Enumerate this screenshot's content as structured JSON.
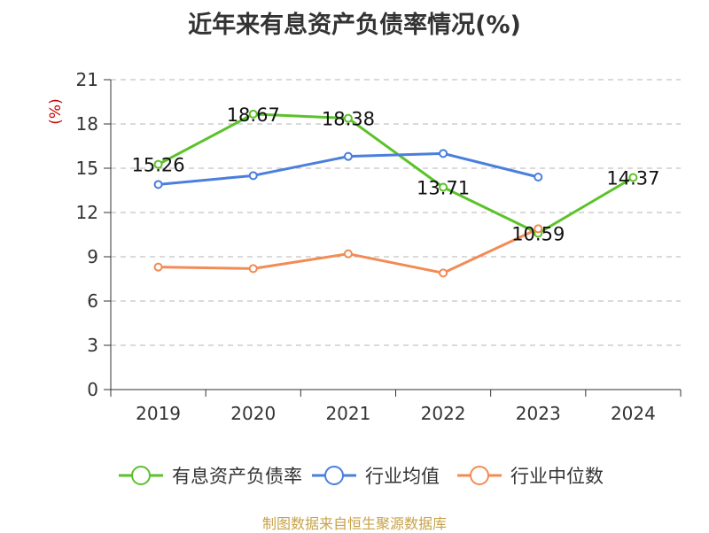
{
  "chart_data": {
    "type": "line",
    "title": "近年来有息资产负债率情况(%)",
    "ylabel": "(%)",
    "categories": [
      "2019",
      "2020",
      "2021",
      "2022",
      "2023",
      "2024"
    ],
    "ylim": [
      0,
      21
    ],
    "yticks": [
      0,
      3,
      6,
      9,
      12,
      15,
      18,
      21
    ],
    "grid": true,
    "legend_position": "bottom",
    "series": [
      {
        "name": "有息资产负债率",
        "color": "#5bc229",
        "values": [
          15.26,
          18.67,
          18.38,
          13.71,
          10.59,
          14.37
        ],
        "labels": [
          "15.26",
          "18.67",
          "18.38",
          "13.71",
          "10.59",
          "14.37"
        ]
      },
      {
        "name": "行业均值",
        "color": "#4a7fdb",
        "values": [
          13.9,
          14.5,
          15.8,
          16.0,
          14.4,
          null
        ]
      },
      {
        "name": "行业中位数",
        "color": "#f28b54",
        "values": [
          8.3,
          8.2,
          9.2,
          7.9,
          10.9,
          null
        ]
      }
    ]
  },
  "footer": {
    "source": "制图数据来自恒生聚源数据库"
  }
}
